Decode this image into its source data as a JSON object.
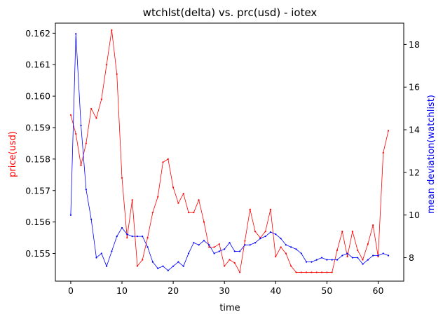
{
  "chart_data": {
    "type": "line",
    "title": "wtchlst(delta) vs. prc(usd) - iotex",
    "xlabel": "time",
    "ylabel_left": "price(usd)",
    "ylabel_right": "mean deviation(watchlist)",
    "xlim": [
      -3,
      65
    ],
    "ylim_left": [
      0.15412,
      0.16232
    ],
    "ylim_right": [
      6.9,
      19.0
    ],
    "xticks": [
      0,
      10,
      20,
      30,
      40,
      50,
      60
    ],
    "yticks_left": [
      0.155,
      0.156,
      0.157,
      0.158,
      0.159,
      0.16,
      0.161,
      0.162
    ],
    "yticks_right": [
      8,
      10,
      12,
      14,
      16,
      18
    ],
    "grid": false,
    "series": [
      {
        "name": "price(usd)",
        "axis": "left",
        "color": "#ff0000",
        "x": [
          0,
          1,
          2,
          3,
          4,
          5,
          6,
          7,
          8,
          9,
          10,
          11,
          12,
          13,
          14,
          15,
          16,
          17,
          18,
          19,
          20,
          21,
          22,
          23,
          24,
          25,
          26,
          27,
          28,
          29,
          30,
          31,
          32,
          33,
          34,
          35,
          36,
          37,
          38,
          39,
          40,
          41,
          42,
          43,
          44,
          45,
          46,
          47,
          48,
          49,
          50,
          51,
          52,
          53,
          54,
          55,
          56,
          57,
          58,
          59,
          60,
          61,
          62
        ],
        "values": [
          0.1594,
          0.1588,
          0.1578,
          0.1585,
          0.1596,
          0.1593,
          0.1599,
          0.161,
          0.1621,
          0.1607,
          0.1574,
          0.1555,
          0.1567,
          0.1546,
          0.1548,
          0.1555,
          0.1563,
          0.1568,
          0.1579,
          0.158,
          0.1571,
          0.1566,
          0.1569,
          0.1563,
          0.1563,
          0.1567,
          0.156,
          0.1552,
          0.1552,
          0.1553,
          0.1546,
          0.1548,
          0.1547,
          0.1544,
          0.1554,
          0.1564,
          0.1557,
          0.1555,
          0.1557,
          0.1564,
          0.1549,
          0.1552,
          0.155,
          0.1546,
          0.1544,
          0.1544,
          0.1544,
          0.1544,
          0.1544,
          0.1544,
          0.1544,
          0.1544,
          0.1551,
          0.1557,
          0.1549,
          0.1557,
          0.1551,
          0.1548,
          0.1553,
          0.1559,
          0.1549,
          0.1582,
          0.1589
        ]
      },
      {
        "name": "mean deviation(watchlist)",
        "axis": "right",
        "color": "#0000ff",
        "x": [
          0,
          1,
          2,
          3,
          4,
          5,
          6,
          7,
          8,
          9,
          10,
          11,
          12,
          13,
          14,
          15,
          16,
          17,
          18,
          19,
          20,
          21,
          22,
          23,
          24,
          25,
          26,
          27,
          28,
          29,
          30,
          31,
          32,
          33,
          34,
          35,
          36,
          37,
          38,
          39,
          40,
          41,
          42,
          43,
          44,
          45,
          46,
          47,
          48,
          49,
          50,
          51,
          52,
          53,
          54,
          55,
          56,
          57,
          58,
          59,
          60,
          61,
          62
        ],
        "values": [
          10.0,
          18.5,
          14.2,
          11.2,
          9.8,
          8.0,
          8.2,
          7.6,
          8.3,
          9.0,
          9.4,
          9.1,
          9.0,
          9.0,
          9.0,
          8.5,
          7.8,
          7.5,
          7.6,
          7.4,
          7.6,
          7.8,
          7.6,
          8.2,
          8.7,
          8.6,
          8.8,
          8.6,
          8.2,
          8.3,
          8.4,
          8.7,
          8.3,
          8.3,
          8.6,
          8.6,
          8.7,
          8.9,
          9.0,
          9.2,
          9.1,
          8.9,
          8.6,
          8.5,
          8.4,
          8.2,
          7.8,
          7.8,
          7.9,
          8.0,
          7.9,
          7.9,
          7.9,
          8.1,
          8.2,
          8.0,
          8.0,
          7.7,
          7.9,
          8.1,
          8.1,
          8.2,
          8.1
        ]
      }
    ]
  }
}
